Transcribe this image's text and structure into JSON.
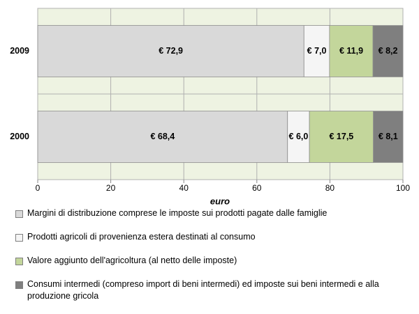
{
  "chart_data": {
    "type": "stacked-barh",
    "x_label": "euro",
    "categories": [
      "2009",
      "2000"
    ],
    "series": [
      {
        "name": "Margini di distribuzione comprese le imposte sui prodotti pagate dalle famiglie",
        "color": "#d9d9d9",
        "values": [
          72.9,
          68.4
        ],
        "value_labels": [
          "€ 72,9",
          "€ 68,4"
        ]
      },
      {
        "name": "Prodotti agricoli di provenienza estera destinati al consumo",
        "color": "#f5f5f5",
        "values": [
          7.0,
          6.0
        ],
        "value_labels": [
          "€ 7,0",
          "€ 6,0"
        ]
      },
      {
        "name": "Valore aggiunto dell'agricoltura (al netto delle imposte)",
        "color": "#c3d69b",
        "values": [
          11.9,
          17.5
        ],
        "value_labels": [
          "€ 11,9",
          "€ 17,5"
        ]
      },
      {
        "name": "Consumi intermedi (compreso import di beni intermedi) ed imposte sui beni intermedi e alla produzione gricola",
        "color": "#7f7f7f",
        "values": [
          8.2,
          8.1
        ],
        "value_labels": [
          "€ 8,2",
          "€ 8,1"
        ]
      }
    ],
    "xlim": [
      0,
      100
    ],
    "xticks": [
      0,
      20,
      40,
      60,
      80,
      100
    ],
    "grid": true
  }
}
